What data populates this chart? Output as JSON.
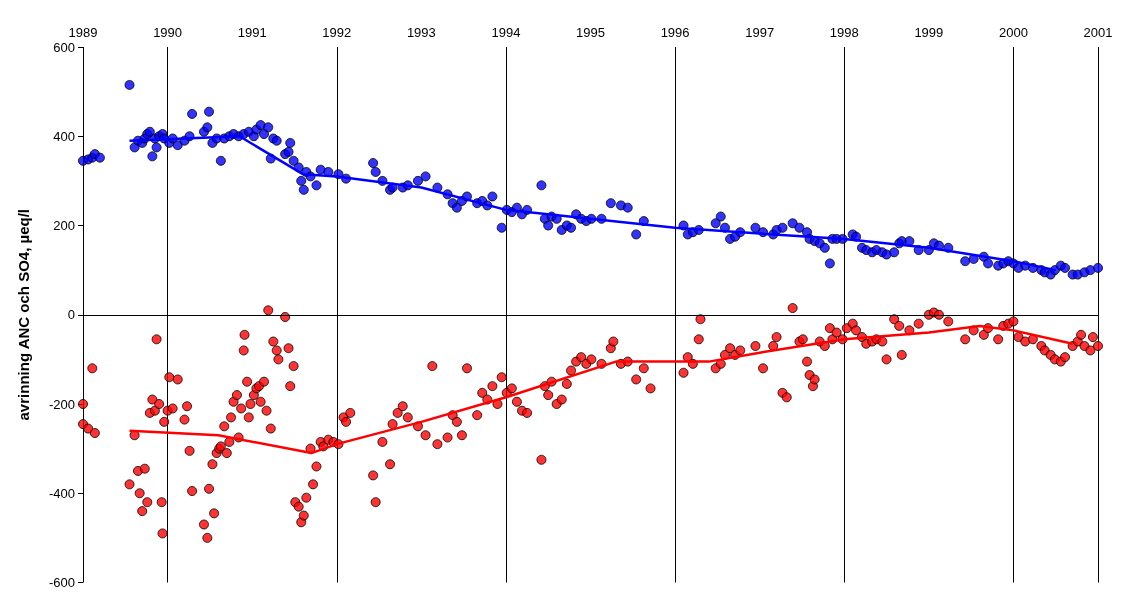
{
  "chart_data": {
    "type": "scatter",
    "ylabel": "avrinning ANC och SO4, µeq/l",
    "xlim": [
      1989,
      2001
    ],
    "xticks": [
      1989,
      1990,
      1991,
      1992,
      1993,
      1994,
      1995,
      1996,
      1997,
      1998,
      1999,
      2000,
      2001
    ],
    "ylim": [
      -600,
      600
    ],
    "yticks": [
      -600,
      -400,
      -200,
      0,
      200,
      400,
      600
    ],
    "grid": "x",
    "marker": "circle",
    "ref_lines": [
      {
        "axis": "y",
        "value": 0,
        "color": "#000000"
      }
    ],
    "series": [
      {
        "color": "#0000ff",
        "x": [
          1989.0,
          1989.06,
          1989.11,
          1989.14,
          1989.2,
          1989.55,
          1989.61,
          1989.65,
          1989.7,
          1989.73,
          1989.76,
          1989.79,
          1989.82,
          1989.85,
          1989.87,
          1989.9,
          1989.94,
          1989.96,
          1990.02,
          1990.06,
          1990.12,
          1990.2,
          1990.26,
          1990.29,
          1990.43,
          1990.47,
          1990.49,
          1990.53,
          1990.58,
          1990.63,
          1990.67,
          1990.73,
          1990.78,
          1990.84,
          1990.9,
          1990.96,
          1991.02,
          1991.05,
          1991.1,
          1991.14,
          1991.19,
          1991.22,
          1991.25,
          1991.29,
          1991.39,
          1991.43,
          1991.45,
          1991.49,
          1991.55,
          1991.58,
          1991.61,
          1991.64,
          1991.69,
          1991.76,
          1991.81,
          1991.9,
          1992.02,
          1992.11,
          1992.43,
          1992.46,
          1992.54,
          1992.63,
          1992.66,
          1992.78,
          1992.84,
          1992.96,
          1993.05,
          1993.19,
          1993.31,
          1993.37,
          1993.42,
          1993.48,
          1993.54,
          1993.66,
          1993.72,
          1993.78,
          1993.84,
          1993.95,
          1994.01,
          1994.07,
          1994.13,
          1994.19,
          1994.25,
          1994.42,
          1994.46,
          1994.5,
          1994.54,
          1994.6,
          1994.66,
          1994.72,
          1994.77,
          1994.83,
          1994.89,
          1994.95,
          1995.01,
          1995.13,
          1995.24,
          1995.36,
          1995.44,
          1995.54,
          1995.63,
          1996.1,
          1996.15,
          1996.21,
          1996.28,
          1996.48,
          1996.54,
          1996.59,
          1996.65,
          1996.71,
          1996.77,
          1996.95,
          1997.04,
          1997.16,
          1997.2,
          1997.27,
          1997.39,
          1997.47,
          1997.56,
          1997.59,
          1997.65,
          1997.71,
          1997.77,
          1997.83,
          1997.86,
          1997.91,
          1997.98,
          1998.1,
          1998.14,
          1998.21,
          1998.26,
          1998.33,
          1998.38,
          1998.45,
          1998.5,
          1998.59,
          1998.65,
          1998.68,
          1998.77,
          1998.88,
          1999.0,
          1999.06,
          1999.12,
          1999.23,
          1999.43,
          1999.53,
          1999.65,
          1999.7,
          1999.82,
          1999.88,
          1999.94,
          2000.0,
          2000.06,
          2000.14,
          2000.23,
          2000.33,
          2000.37,
          2000.44,
          2000.49,
          2000.56,
          2000.61,
          2000.7,
          2000.76,
          2000.84,
          2000.91,
          2001.0
        ],
        "values": [
          345,
          348,
          352,
          360,
          352,
          515,
          375,
          390,
          385,
          395,
          405,
          410,
          355,
          395,
          375,
          400,
          405,
          395,
          385,
          395,
          380,
          390,
          400,
          450,
          410,
          420,
          455,
          385,
          395,
          345,
          395,
          400,
          405,
          400,
          405,
          410,
          400,
          415,
          425,
          405,
          420,
          350,
          395,
          390,
          360,
          365,
          385,
          345,
          330,
          300,
          280,
          320,
          310,
          290,
          325,
          320,
          315,
          305,
          340,
          320,
          300,
          280,
          285,
          285,
          290,
          300,
          310,
          285,
          270,
          250,
          240,
          255,
          265,
          250,
          255,
          245,
          265,
          195,
          235,
          230,
          240,
          225,
          235,
          290,
          215,
          200,
          220,
          215,
          190,
          200,
          195,
          225,
          215,
          210,
          215,
          215,
          250,
          245,
          240,
          180,
          210,
          200,
          180,
          185,
          190,
          205,
          220,
          195,
          170,
          175,
          185,
          195,
          185,
          180,
          190,
          195,
          205,
          195,
          185,
          170,
          165,
          160,
          150,
          115,
          170,
          170,
          170,
          180,
          175,
          150,
          145,
          140,
          145,
          140,
          135,
          140,
          160,
          165,
          165,
          145,
          145,
          160,
          155,
          150,
          120,
          125,
          130,
          115,
          110,
          115,
          120,
          115,
          105,
          110,
          105,
          100,
          95,
          90,
          100,
          110,
          105,
          90,
          90,
          95,
          100,
          105
        ]
      },
      {
        "color": "#ff0000",
        "x": [
          1989.0,
          1989.0,
          1989.06,
          1989.11,
          1989.14,
          1989.55,
          1989.61,
          1989.65,
          1989.67,
          1989.7,
          1989.73,
          1989.76,
          1989.79,
          1989.82,
          1989.85,
          1989.87,
          1989.9,
          1989.93,
          1989.94,
          1989.96,
          1990.0,
          1990.02,
          1990.06,
          1990.12,
          1990.2,
          1990.23,
          1990.26,
          1990.29,
          1990.43,
          1990.47,
          1990.49,
          1990.53,
          1990.55,
          1990.58,
          1990.61,
          1990.63,
          1990.67,
          1990.7,
          1990.73,
          1990.75,
          1990.78,
          1990.82,
          1990.84,
          1990.87,
          1990.9,
          1990.91,
          1990.94,
          1990.96,
          1990.98,
          1991.02,
          1991.05,
          1991.08,
          1991.1,
          1991.14,
          1991.17,
          1991.19,
          1991.22,
          1991.25,
          1991.29,
          1991.31,
          1991.39,
          1991.43,
          1991.45,
          1991.49,
          1991.51,
          1991.55,
          1991.58,
          1991.61,
          1991.64,
          1991.69,
          1991.72,
          1991.76,
          1991.81,
          1991.84,
          1991.9,
          1991.96,
          1992.02,
          1992.08,
          1992.11,
          1992.16,
          1992.43,
          1992.46,
          1992.54,
          1992.63,
          1992.66,
          1992.72,
          1992.78,
          1992.84,
          1992.96,
          1993.05,
          1993.13,
          1993.19,
          1993.31,
          1993.37,
          1993.42,
          1993.48,
          1993.54,
          1993.66,
          1993.72,
          1993.78,
          1993.84,
          1993.9,
          1993.95,
          1994.01,
          1994.07,
          1994.13,
          1994.19,
          1994.25,
          1994.42,
          1994.46,
          1994.5,
          1994.54,
          1994.6,
          1994.66,
          1994.72,
          1994.77,
          1994.83,
          1994.89,
          1994.95,
          1995.01,
          1995.13,
          1995.24,
          1995.27,
          1995.36,
          1995.44,
          1995.54,
          1995.63,
          1995.71,
          1996.1,
          1996.15,
          1996.21,
          1996.28,
          1996.3,
          1996.48,
          1996.54,
          1996.59,
          1996.65,
          1996.71,
          1996.77,
          1996.95,
          1997.04,
          1997.16,
          1997.2,
          1997.27,
          1997.32,
          1997.39,
          1997.47,
          1997.51,
          1997.56,
          1997.59,
          1997.63,
          1997.65,
          1997.71,
          1997.77,
          1997.83,
          1997.86,
          1997.91,
          1997.98,
          1998.03,
          1998.1,
          1998.14,
          1998.21,
          1998.26,
          1998.33,
          1998.38,
          1998.45,
          1998.5,
          1998.59,
          1998.65,
          1998.68,
          1998.77,
          1998.88,
          1999.0,
          1999.06,
          1999.12,
          1999.23,
          1999.43,
          1999.53,
          1999.65,
          1999.7,
          1999.82,
          1999.88,
          1999.94,
          2000.0,
          2000.06,
          2000.14,
          2000.23,
          2000.33,
          2000.37,
          2000.44,
          2000.49,
          2000.56,
          2000.61,
          2000.7,
          2000.76,
          2000.8,
          2000.84,
          2000.91,
          2000.94,
          2001.0
        ],
        "values": [
          -200,
          -245,
          -255,
          -120,
          -265,
          -380,
          -270,
          -350,
          -400,
          -440,
          -345,
          -420,
          -220,
          -190,
          -215,
          -55,
          -200,
          -420,
          -490,
          -240,
          -215,
          -140,
          -210,
          -145,
          -235,
          -205,
          -305,
          -395,
          -470,
          -500,
          -390,
          -335,
          -445,
          -310,
          -300,
          -295,
          -250,
          -310,
          -285,
          -230,
          -195,
          -180,
          -275,
          -210,
          -80,
          -45,
          -150,
          -230,
          -200,
          -180,
          -165,
          -160,
          -195,
          -150,
          -215,
          10,
          -255,
          -60,
          -80,
          -100,
          -5,
          -75,
          -160,
          -115,
          -420,
          -430,
          -465,
          -450,
          -410,
          -300,
          -380,
          -340,
          -285,
          -295,
          -280,
          -285,
          -290,
          -230,
          -240,
          -220,
          -360,
          -420,
          -285,
          -335,
          -245,
          -220,
          -205,
          -230,
          -250,
          -270,
          -115,
          -290,
          -275,
          -225,
          -240,
          -270,
          -120,
          -225,
          -175,
          -190,
          -160,
          -200,
          -140,
          -175,
          -165,
          -195,
          -215,
          -220,
          -325,
          -160,
          -180,
          -150,
          -200,
          -190,
          -155,
          -125,
          -105,
          -95,
          -110,
          -100,
          -110,
          -75,
          -60,
          -110,
          -105,
          -145,
          -120,
          -165,
          -130,
          -95,
          -110,
          -55,
          -10,
          -120,
          -110,
          -90,
          -75,
          -90,
          -80,
          -70,
          -120,
          -70,
          -50,
          -175,
          -185,
          15,
          -60,
          -55,
          -105,
          -135,
          -160,
          -145,
          -60,
          -70,
          -30,
          -55,
          -40,
          -55,
          -30,
          -20,
          -35,
          -50,
          -65,
          -60,
          -55,
          -60,
          -100,
          -10,
          -25,
          -90,
          -35,
          -20,
          0,
          5,
          0,
          -15,
          -55,
          -35,
          -45,
          -30,
          -55,
          -25,
          -20,
          -15,
          -50,
          -60,
          -55,
          -70,
          -80,
          -90,
          -100,
          -105,
          -95,
          -70,
          -60,
          -45,
          -70,
          -80,
          -50,
          -70
        ]
      },
      {
        "type": "line",
        "color": "#0000ff",
        "marker": "none",
        "x": [
          1989.55,
          1990.85,
          1991.6,
          1992.0,
          1993.0,
          1994.0,
          1995.0,
          1996.0,
          1997.0,
          1998.0,
          1999.0,
          2000.0,
          2000.5
        ],
        "values": [
          390,
          400,
          315,
          310,
          285,
          235,
          215,
          195,
          182,
          170,
          150,
          120,
          100
        ]
      },
      {
        "type": "line",
        "color": "#ff0000",
        "marker": "none",
        "x": [
          1989.55,
          1990.6,
          1991.7,
          1992.0,
          1993.0,
          1994.0,
          1995.3,
          1996.4,
          1997.0,
          1998.0,
          1999.0,
          1999.6,
          2000.0,
          2000.7
        ],
        "values": [
          -260,
          -270,
          -310,
          -290,
          -240,
          -185,
          -105,
          -105,
          -85,
          -55,
          -40,
          -25,
          -35,
          -65
        ]
      }
    ]
  }
}
